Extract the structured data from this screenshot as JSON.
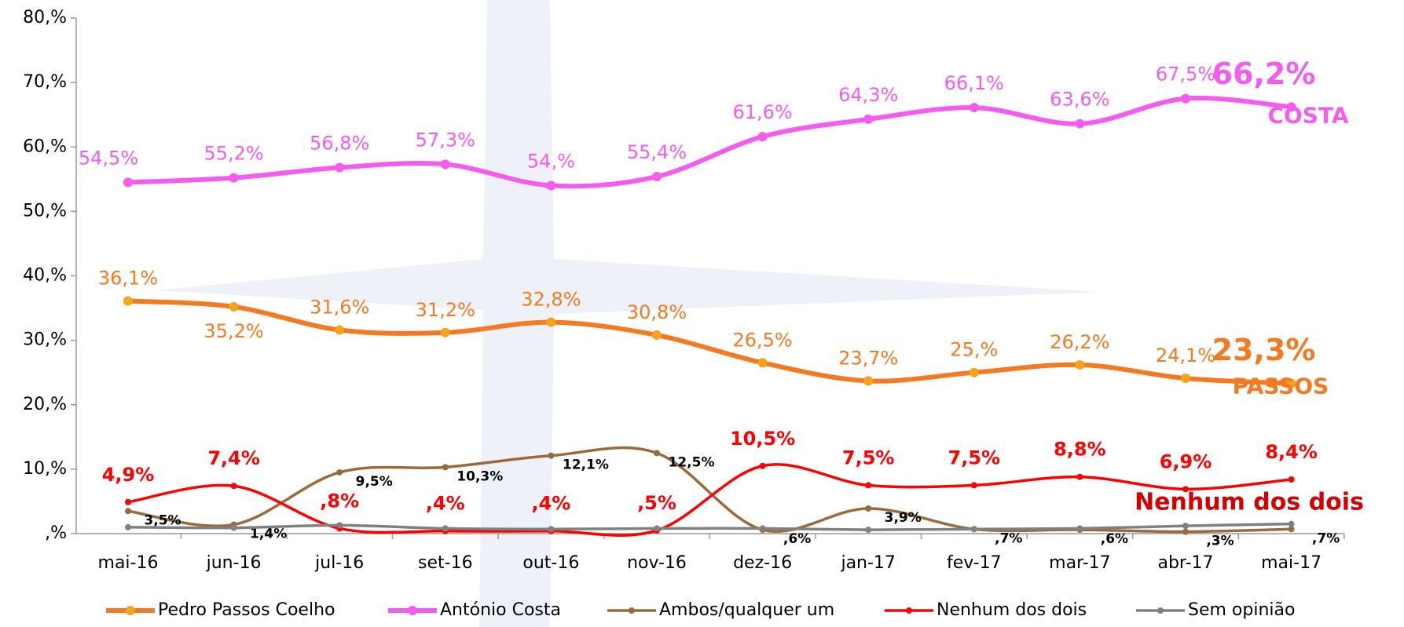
{
  "chart_data": {
    "type": "line",
    "categories": [
      "mai-16",
      "jun-16",
      "jul-16",
      "set-16",
      "out-16",
      "nov-16",
      "dez-16",
      "jan-17",
      "fev-17",
      "mar-17",
      "abr-17",
      "mai-17"
    ],
    "ylim": [
      0,
      80
    ],
    "yticks": [
      {
        "value": 0,
        "label": ",%"
      },
      {
        "value": 10,
        "label": "10,%"
      },
      {
        "value": 20,
        "label": "20,%"
      },
      {
        "value": 30,
        "label": "30,%"
      },
      {
        "value": 40,
        "label": "40,%"
      },
      {
        "value": 50,
        "label": "50,%"
      },
      {
        "value": 60,
        "label": "60,%"
      },
      {
        "value": 70,
        "label": "70,%"
      },
      {
        "value": 80,
        "label": "80,%"
      }
    ],
    "legend": "bottom",
    "series": [
      {
        "name": "Pedro Passos Coelho",
        "color": "#f47920",
        "marker_color": "#f5a31a",
        "values": [
          36.1,
          35.2,
          31.6,
          31.2,
          32.8,
          30.8,
          26.5,
          23.7,
          25,
          26.2,
          24.1,
          23.3
        ],
        "value_labels": [
          "36,1%",
          "35,2%",
          "31,6%",
          "31,2%",
          "32,8%",
          "30,8%",
          "26,5%",
          "23,7%",
          "25,%",
          "26,2%",
          "24,1%",
          "23,3%"
        ]
      },
      {
        "name": "António Costa",
        "color": "#f45cf0",
        "marker_color": "#f45cf0",
        "values": [
          54.5,
          55.2,
          56.8,
          57.3,
          54,
          55.4,
          61.6,
          64.3,
          66.1,
          63.6,
          67.5,
          66.2
        ],
        "value_labels": [
          "54,5%",
          "55,2%",
          "56,8%",
          "57,3%",
          "54,%",
          "55,4%",
          "61,6%",
          "64,3%",
          "66,1%",
          "63,6%",
          "67,5%",
          "66,2%"
        ]
      },
      {
        "name": "Ambos/qualquer um",
        "color": "#9b6a3a",
        "marker_color": "#9b6a3a",
        "values": [
          3.5,
          1.4,
          9.5,
          10.3,
          12.1,
          12.5,
          0.6,
          3.9,
          0.7,
          0.6,
          0.3,
          0.7
        ],
        "value_labels": [
          "3,5%",
          "1,4%",
          "9,5%",
          "10,3%",
          "12,1%",
          "12,5%",
          ",6%",
          "3,9%",
          ",7%",
          ",6%",
          ",3%",
          ",7%"
        ]
      },
      {
        "name": "Nenhum dos dois",
        "color": "#ff0000",
        "marker_color": "#ff0000",
        "values": [
          4.9,
          7.4,
          0.8,
          0.4,
          0.4,
          0.5,
          10.5,
          7.5,
          7.5,
          8.8,
          6.9,
          8.4
        ],
        "value_labels": [
          "4,9%",
          "7,4%",
          ",8%",
          ",4%",
          ",4%",
          ",5%",
          "10,5%",
          "7,5%",
          "7,5%",
          "8,8%",
          "6,9%",
          "8,4%"
        ]
      },
      {
        "name": "Sem opinião",
        "color": "#808080",
        "marker_color": "#808080",
        "values": [
          1.0,
          0.9,
          1.3,
          0.8,
          0.7,
          0.8,
          0.8,
          0.6,
          0.7,
          0.8,
          1.2,
          1.5
        ]
      }
    ],
    "annotations": [
      "PASSOS",
      "COSTA",
      "Nenhum dos dois"
    ]
  }
}
